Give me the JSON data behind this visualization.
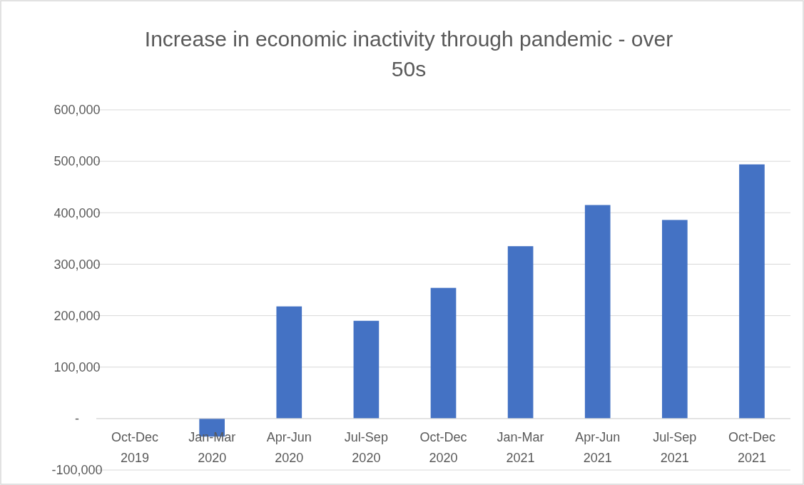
{
  "chart_data": {
    "type": "bar",
    "title": "Increase in economic inactivity through pandemic - over 50s",
    "categories": [
      "Oct-Dec 2019",
      "Jan-Mar 2020",
      "Apr-Jun 2020",
      "Jul-Sep 2020",
      "Oct-Dec 2020",
      "Jan-Mar 2021",
      "Apr-Jun 2021",
      "Jul-Sep 2021",
      "Oct-Dec 2021"
    ],
    "values": [
      0,
      -35000,
      218000,
      190000,
      254000,
      335000,
      415000,
      386000,
      494000
    ],
    "color": "#4472c4",
    "ylim": [
      -100000,
      600000
    ],
    "yticks": [
      {
        "value": -100000,
        "label": "-100,000"
      },
      {
        "value": 0,
        "label": "-"
      },
      {
        "value": 100000,
        "label": "100,000"
      },
      {
        "value": 200000,
        "label": "200,000"
      },
      {
        "value": 300000,
        "label": "300,000"
      },
      {
        "value": 400000,
        "label": "400,000"
      },
      {
        "value": 500000,
        "label": "500,000"
      },
      {
        "value": 600000,
        "label": "600,000"
      }
    ],
    "grid": true
  }
}
